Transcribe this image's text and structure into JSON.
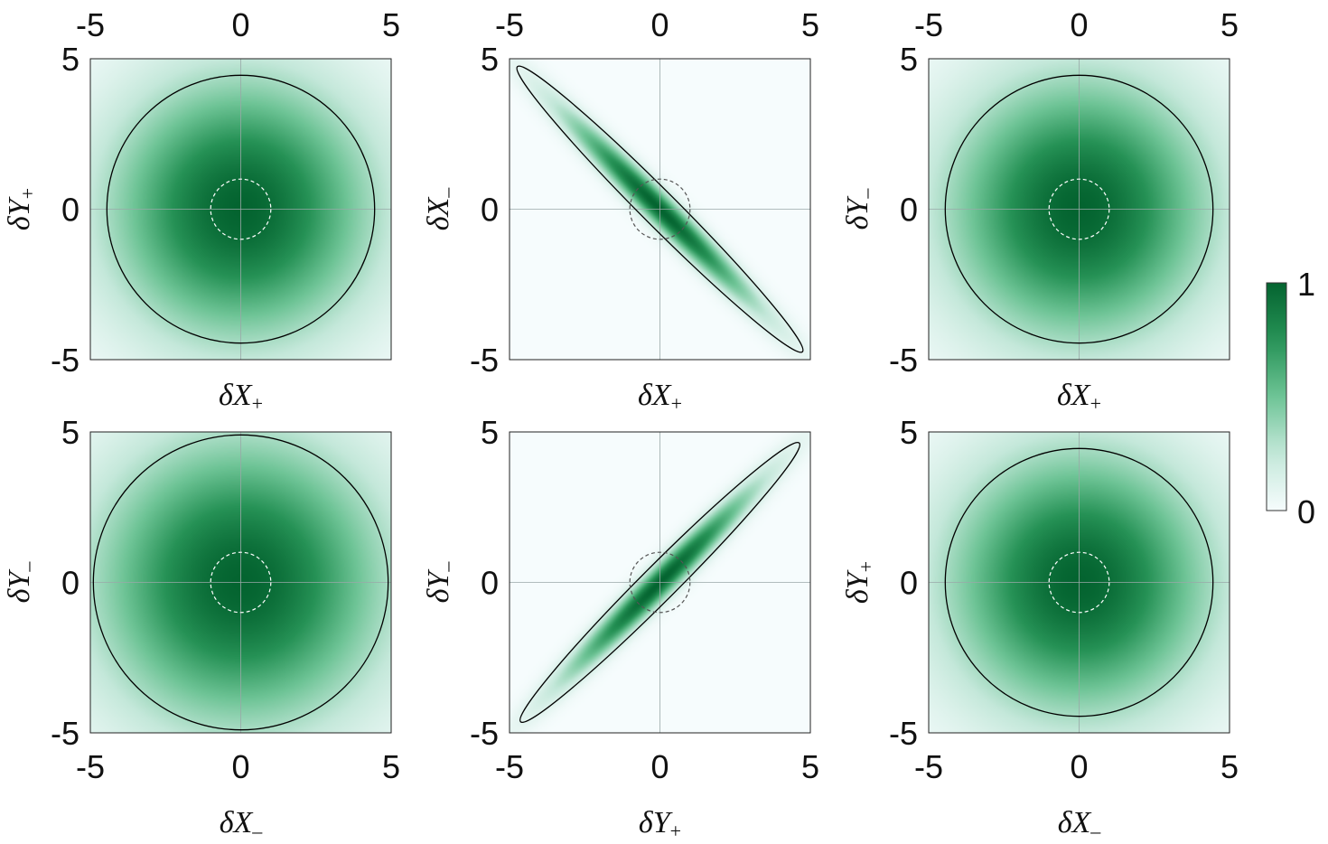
{
  "chart_data": [
    {
      "type": "heatmap",
      "id": "top-left",
      "xlabel": {
        "base": "δX",
        "sub": "+"
      },
      "ylabel": {
        "base": "δY",
        "sub": "+"
      },
      "xlim": [
        -5,
        5
      ],
      "ylim": [
        -5,
        5
      ],
      "xticks": [
        "-5",
        "0",
        "5"
      ],
      "yticks": [
        "5",
        "0",
        "-5"
      ],
      "top_ticks": true,
      "bottom_ticks": false,
      "distribution": {
        "shape": "circle",
        "width": 3.0
      },
      "outer_contour": {
        "shape": "circle",
        "radius": 4.45,
        "color": "#000000"
      },
      "inner_contour": {
        "shape": "circle",
        "radius": 1.0,
        "color": "#ffffff",
        "dashed": true
      },
      "grid": true
    },
    {
      "type": "heatmap",
      "id": "top-middle",
      "xlabel": {
        "base": "δX",
        "sub": "+"
      },
      "ylabel": {
        "base": "δX",
        "sub": "–"
      },
      "xlim": [
        -5,
        5
      ],
      "ylim": [
        -5,
        5
      ],
      "xticks": [
        "-5",
        "0",
        "5"
      ],
      "yticks": [
        "5",
        "0",
        "-5"
      ],
      "top_ticks": true,
      "bottom_ticks": false,
      "distribution": {
        "shape": "ellipse",
        "angle_deg": -45,
        "major_width": 3.0,
        "minor_width": 0.32
      },
      "outer_contour": {
        "shape": "ellipse",
        "angle_deg": -45,
        "semi_major": 6.7,
        "semi_minor": 0.58,
        "color": "#000000"
      },
      "inner_contour": {
        "shape": "circle",
        "radius": 1.0,
        "color": "#555555",
        "dashed": true
      },
      "grid": true
    },
    {
      "type": "heatmap",
      "id": "top-right",
      "xlabel": {
        "base": "δX",
        "sub": "+"
      },
      "ylabel": {
        "base": "δY",
        "sub": "–"
      },
      "xlim": [
        -5,
        5
      ],
      "ylim": [
        -5,
        5
      ],
      "xticks": [
        "-5",
        "0",
        "5"
      ],
      "yticks": [
        "5",
        "0",
        "-5"
      ],
      "top_ticks": true,
      "bottom_ticks": false,
      "distribution": {
        "shape": "circle",
        "width": 3.0
      },
      "outer_contour": {
        "shape": "circle",
        "radius": 4.45,
        "color": "#000000"
      },
      "inner_contour": {
        "shape": "circle",
        "radius": 1.0,
        "color": "#ffffff",
        "dashed": true
      },
      "grid": true
    },
    {
      "type": "heatmap",
      "id": "bottom-left",
      "xlabel": {
        "base": "δX",
        "sub": "–"
      },
      "ylabel": {
        "base": "δY",
        "sub": "–"
      },
      "xlim": [
        -5,
        5
      ],
      "ylim": [
        -5,
        5
      ],
      "xticks": [
        "-5",
        "0",
        "5"
      ],
      "yticks": [
        "5",
        "0",
        "-5"
      ],
      "top_ticks": false,
      "bottom_ticks": true,
      "distribution": {
        "shape": "circle",
        "width": 3.3
      },
      "outer_contour": {
        "shape": "circle",
        "radius": 4.9,
        "color": "#000000"
      },
      "inner_contour": {
        "shape": "circle",
        "radius": 1.0,
        "color": "#ffffff",
        "dashed": true
      },
      "grid": true
    },
    {
      "type": "heatmap",
      "id": "bottom-middle",
      "xlabel": {
        "base": "δY",
        "sub": "+"
      },
      "ylabel": {
        "base": "δY",
        "sub": "–"
      },
      "xlim": [
        -5,
        5
      ],
      "ylim": [
        -5,
        5
      ],
      "xticks": [
        "-5",
        "0",
        "5"
      ],
      "yticks": [
        "5",
        "0",
        "-5"
      ],
      "top_ticks": false,
      "bottom_ticks": true,
      "distribution": {
        "shape": "ellipse",
        "angle_deg": 45,
        "major_width": 3.0,
        "minor_width": 0.32
      },
      "outer_contour": {
        "shape": "ellipse",
        "angle_deg": 45,
        "semi_major": 6.55,
        "semi_minor": 0.58,
        "color": "#000000"
      },
      "inner_contour": {
        "shape": "circle",
        "radius": 1.0,
        "color": "#555555",
        "dashed": true
      },
      "grid": true
    },
    {
      "type": "heatmap",
      "id": "bottom-right",
      "xlabel": {
        "base": "δX",
        "sub": "–"
      },
      "ylabel": {
        "base": "δY",
        "sub": "+"
      },
      "xlim": [
        -5,
        5
      ],
      "ylim": [
        -5,
        5
      ],
      "xticks": [
        "-5",
        "0",
        "5"
      ],
      "yticks": [
        "5",
        "0",
        "-5"
      ],
      "top_ticks": false,
      "bottom_ticks": true,
      "distribution": {
        "shape": "circle",
        "width": 3.0
      },
      "outer_contour": {
        "shape": "circle",
        "radius": 4.45,
        "color": "#000000"
      },
      "inner_contour": {
        "shape": "circle",
        "radius": 1.0,
        "color": "#ffffff",
        "dashed": true
      },
      "grid": true
    }
  ],
  "colorbar": {
    "min_label": "0",
    "max_label": "1",
    "range": [
      0,
      1
    ],
    "color_low": "#f6fcfd",
    "color_high": "#046430"
  },
  "colors": {
    "background_low": "#f2fafc",
    "peak": "#046430",
    "grid": "#9aa8a8"
  }
}
